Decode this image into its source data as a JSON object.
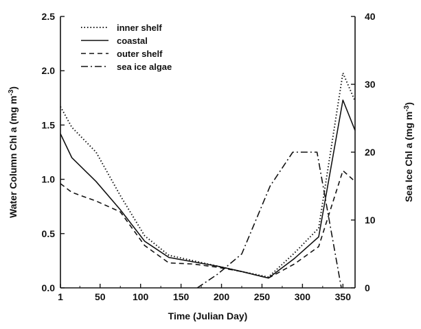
{
  "chart_data": {
    "type": "line",
    "xlabel": "Time (Julian Day)",
    "ylabel": "Water Column Chl a (mg m",
    "ylabel_sup": "-3",
    "ylabel_end": ")",
    "y2label": "Sea Ice Chl a (mg m",
    "y2label_sup": "-3",
    "y2label_end": ")",
    "xlim": [
      1,
      365
    ],
    "ylim": [
      0,
      2.5
    ],
    "y2lim": [
      0,
      40
    ],
    "xticks": [
      1,
      50,
      100,
      150,
      200,
      250,
      300,
      350
    ],
    "xtick_labels": [
      "1",
      "50",
      "100",
      "150",
      "200",
      "250",
      "300",
      "350"
    ],
    "yticks": [
      0,
      0.5,
      1.0,
      1.5,
      2.0,
      2.5
    ],
    "ytick_labels": [
      "0.0",
      "0.5",
      "1.0",
      "1.5",
      "2.0",
      "2.5"
    ],
    "y2ticks": [
      0,
      10,
      20,
      30,
      40
    ],
    "y2tick_labels": [
      "0",
      "10",
      "20",
      "30",
      "40"
    ],
    "legend_position": "top-left",
    "series": [
      {
        "name": "inner shelf",
        "dash": "dotted",
        "axis": "left",
        "x": [
          1,
          15,
          45,
          75,
          105,
          135,
          165,
          195,
          225,
          258,
          290,
          320,
          350,
          365
        ],
        "y": [
          1.67,
          1.48,
          1.25,
          0.85,
          0.48,
          0.3,
          0.25,
          0.2,
          0.15,
          0.1,
          0.32,
          0.55,
          1.98,
          1.72
        ]
      },
      {
        "name": "coastal",
        "dash": "solid",
        "axis": "left",
        "x": [
          1,
          15,
          45,
          75,
          105,
          135,
          165,
          195,
          225,
          258,
          290,
          320,
          350,
          365
        ],
        "y": [
          1.42,
          1.2,
          0.98,
          0.72,
          0.43,
          0.28,
          0.24,
          0.2,
          0.15,
          0.09,
          0.27,
          0.47,
          1.73,
          1.45
        ]
      },
      {
        "name": "outer shelf",
        "dash": "dashed",
        "axis": "left",
        "x": [
          1,
          15,
          45,
          75,
          105,
          135,
          165,
          195,
          225,
          258,
          290,
          320,
          350,
          365
        ],
        "y": [
          0.96,
          0.88,
          0.8,
          0.7,
          0.39,
          0.23,
          0.22,
          0.19,
          0.15,
          0.09,
          0.22,
          0.38,
          1.08,
          0.98
        ]
      },
      {
        "name": "sea ice algae",
        "dash": "dashdot",
        "axis": "right",
        "x": [
          170,
          195,
          225,
          260,
          288,
          318,
          348
        ],
        "y": [
          0,
          2,
          5,
          15,
          20,
          20,
          0
        ]
      }
    ]
  }
}
